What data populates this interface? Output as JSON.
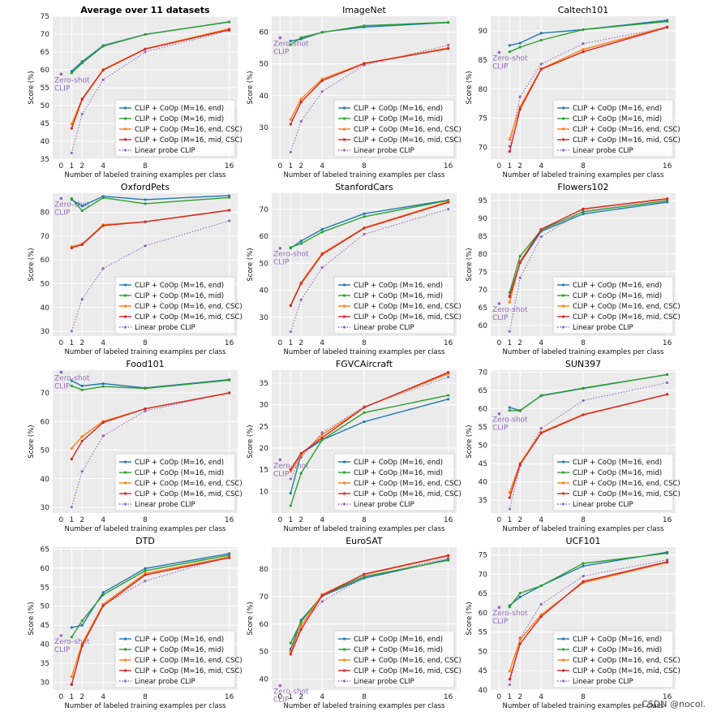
{
  "colors": {
    "end": "#1f77b4",
    "mid": "#2ca02c",
    "end_csc": "#ff7f0e",
    "mid_csc": "#d62728",
    "linear": "#9467bd",
    "background": "#ebebeb",
    "grid": "#ffffff"
  },
  "common": {
    "xlabel": "Number of labeled training examples per class",
    "ylabel": "Score (%)",
    "zero_shot_label_line1": "Zero-shot",
    "zero_shot_label_line2": "CLIP",
    "x": [
      1,
      2,
      4,
      8,
      16
    ],
    "xticks": [
      0,
      1,
      2,
      4,
      8,
      16
    ],
    "legend": [
      "CLIP + CoOp (M=16, end)",
      "CLIP + CoOp (M=16, mid)",
      "CLIP + CoOp (M=16, end, CSC)",
      "CLIP + CoOp (M=16, mid, CSC)",
      "Linear probe CLIP"
    ]
  },
  "watermark": "CSDN @nocol.",
  "chart_data": [
    {
      "type": "line",
      "title": "Average over 11 datasets",
      "bold": true,
      "ylim": [
        35,
        75
      ],
      "yticks": [
        35,
        40,
        45,
        50,
        55,
        60,
        65,
        70,
        75
      ],
      "zero_shot": 58.8,
      "series": [
        {
          "key": "end",
          "values": [
            59.6,
            62.3,
            66.8,
            69.9,
            73.4
          ]
        },
        {
          "key": "mid",
          "values": [
            59.1,
            61.9,
            66.6,
            69.9,
            73.4
          ]
        },
        {
          "key": "end_csc",
          "values": [
            44.8,
            51.9,
            60.1,
            65.9,
            71.5
          ]
        },
        {
          "key": "mid_csc",
          "values": [
            43.6,
            51.7,
            59.9,
            65.8,
            71.2
          ]
        },
        {
          "key": "linear",
          "values": [
            36.7,
            47.6,
            57.2,
            65.0,
            71.0
          ]
        }
      ]
    },
    {
      "type": "line",
      "title": "ImageNet",
      "ylim": [
        20,
        65
      ],
      "yticks": [
        30,
        40,
        50,
        60
      ],
      "zero_shot": 58.2,
      "series": [
        {
          "key": "end",
          "values": [
            57.2,
            57.8,
            60.0,
            61.6,
            63.0
          ]
        },
        {
          "key": "mid",
          "values": [
            56.0,
            58.3,
            59.9,
            62.0,
            63.1
          ]
        },
        {
          "key": "end_csc",
          "values": [
            32.5,
            39.0,
            45.2,
            50.2,
            55.0
          ]
        },
        {
          "key": "mid_csc",
          "values": [
            31.0,
            38.0,
            44.7,
            50.1,
            54.8
          ]
        },
        {
          "key": "linear",
          "values": [
            22.2,
            31.9,
            41.3,
            49.6,
            55.9
          ]
        }
      ]
    },
    {
      "type": "line",
      "title": "Caltech101",
      "ylim": [
        68,
        92.5
      ],
      "yticks": [
        70,
        75,
        80,
        85,
        90
      ],
      "zero_shot": 86.3,
      "series": [
        {
          "key": "end",
          "values": [
            87.5,
            87.9,
            89.6,
            90.2,
            91.8
          ]
        },
        {
          "key": "mid",
          "values": [
            86.4,
            87.2,
            88.4,
            90.2,
            91.6
          ]
        },
        {
          "key": "end_csc",
          "values": [
            71.4,
            77.0,
            83.5,
            86.8,
            90.7
          ]
        },
        {
          "key": "mid_csc",
          "values": [
            69.3,
            76.6,
            83.4,
            86.4,
            90.6
          ]
        },
        {
          "key": "linear",
          "values": [
            70.2,
            78.7,
            84.3,
            87.8,
            90.6
          ]
        }
      ]
    },
    {
      "type": "line",
      "title": "OxfordPets",
      "ylim": [
        28,
        88
      ],
      "yticks": [
        30,
        40,
        50,
        60,
        70,
        80
      ],
      "zero_shot": 85.8,
      "series": [
        {
          "key": "end",
          "values": [
            85.3,
            82.6,
            86.7,
            85.3,
            87.0
          ]
        },
        {
          "key": "mid",
          "values": [
            85.8,
            80.6,
            86.1,
            83.6,
            86.2
          ]
        },
        {
          "key": "end_csc",
          "values": [
            65.6,
            66.7,
            74.8,
            76.0,
            80.9
          ]
        },
        {
          "key": "mid_csc",
          "values": [
            65.0,
            66.4,
            74.4,
            76.0,
            80.8
          ]
        },
        {
          "key": "linear",
          "values": [
            30.1,
            43.5,
            56.4,
            65.9,
            76.4
          ]
        }
      ]
    },
    {
      "type": "line",
      "title": "StanfordCars",
      "ylim": [
        23,
        76
      ],
      "yticks": [
        30,
        40,
        50,
        60,
        70
      ],
      "zero_shot": 55.6,
      "series": [
        {
          "key": "end",
          "values": [
            55.6,
            58.3,
            62.6,
            68.4,
            73.4
          ]
        },
        {
          "key": "mid",
          "values": [
            55.9,
            57.3,
            61.6,
            67.3,
            73.3
          ]
        },
        {
          "key": "end_csc",
          "values": [
            34.5,
            42.9,
            53.7,
            63.2,
            72.9
          ]
        },
        {
          "key": "mid_csc",
          "values": [
            34.3,
            42.5,
            53.3,
            63.0,
            72.6
          ]
        },
        {
          "key": "linear",
          "values": [
            24.6,
            36.5,
            48.4,
            60.8,
            70.1
          ]
        }
      ]
    },
    {
      "type": "line",
      "title": "Flowers102",
      "ylim": [
        57,
        97
      ],
      "yticks": [
        60,
        65,
        70,
        75,
        80,
        85,
        90,
        95
      ],
      "zero_shot": 66.1,
      "series": [
        {
          "key": "end",
          "values": [
            68.2,
            77.5,
            86.3,
            91.2,
            94.5
          ]
        },
        {
          "key": "mid",
          "values": [
            69.2,
            79.4,
            86.7,
            91.8,
            94.9
          ]
        },
        {
          "key": "end_csc",
          "values": [
            66.5,
            77.9,
            86.9,
            92.6,
            95.5
          ]
        },
        {
          "key": "mid_csc",
          "values": [
            68.0,
            77.6,
            86.9,
            92.6,
            95.4
          ]
        },
        {
          "key": "linear",
          "values": [
            58.3,
            73.3,
            84.8,
            92.0,
            94.9
          ]
        }
      ]
    },
    {
      "type": "line",
      "title": "Food101",
      "ylim": [
        28,
        78
      ],
      "yticks": [
        30,
        40,
        50,
        60,
        70
      ],
      "zero_shot": 77.3,
      "series": [
        {
          "key": "end",
          "values": [
            74.3,
            72.5,
            73.3,
            71.8,
            74.7
          ]
        },
        {
          "key": "mid",
          "values": [
            72.5,
            71.1,
            72.3,
            71.6,
            74.5
          ]
        },
        {
          "key": "end_csc",
          "values": [
            50.6,
            54.8,
            60.1,
            64.5,
            70.1
          ]
        },
        {
          "key": "mid_csc",
          "values": [
            46.9,
            53.2,
            59.7,
            64.5,
            70.0
          ]
        },
        {
          "key": "linear",
          "values": [
            30.1,
            42.6,
            55.0,
            63.7,
            70.2
          ]
        }
      ]
    },
    {
      "type": "line",
      "title": "FGVCAircraft",
      "ylim": [
        5,
        38
      ],
      "yticks": [
        10,
        15,
        20,
        25,
        30,
        35
      ],
      "zero_shot": 17.3,
      "series": [
        {
          "key": "end",
          "values": [
            9.6,
            18.7,
            21.9,
            26.1,
            31.3
          ]
        },
        {
          "key": "mid",
          "values": [
            6.7,
            14.2,
            21.9,
            28.2,
            32.2
          ]
        },
        {
          "key": "end_csc",
          "values": [
            14.6,
            18.4,
            23.1,
            29.4,
            37.2
          ]
        },
        {
          "key": "mid_csc",
          "values": [
            15.1,
            18.8,
            22.4,
            29.4,
            37.5
          ]
        },
        {
          "key": "linear",
          "values": [
            12.9,
            17.9,
            23.6,
            29.6,
            36.4
          ]
        }
      ]
    },
    {
      "type": "line",
      "title": "SUN397",
      "ylim": [
        31.5,
        70.5
      ],
      "yticks": [
        35,
        40,
        45,
        50,
        55,
        60,
        65,
        70
      ],
      "zero_shot": 58.6,
      "series": [
        {
          "key": "end",
          "values": [
            60.3,
            59.5,
            63.5,
            65.5,
            69.3
          ]
        },
        {
          "key": "mid",
          "values": [
            59.5,
            59.4,
            63.6,
            65.6,
            69.3
          ]
        },
        {
          "key": "end_csc",
          "values": [
            37.1,
            45.1,
            53.6,
            58.4,
            63.9
          ]
        },
        {
          "key": "mid_csc",
          "values": [
            35.7,
            44.8,
            53.3,
            58.3,
            63.9
          ]
        },
        {
          "key": "linear",
          "values": [
            32.6,
            44.4,
            54.6,
            62.2,
            67.1
          ]
        }
      ]
    },
    {
      "type": "line",
      "title": "DTD",
      "ylim": [
        28,
        65.5
      ],
      "yticks": [
        30,
        35,
        40,
        45,
        50,
        55,
        60,
        65
      ],
      "zero_shot": 42.3,
      "series": [
        {
          "key": "end",
          "values": [
            44.4,
            45.0,
            53.6,
            59.9,
            63.8
          ]
        },
        {
          "key": "mid",
          "values": [
            41.9,
            46.2,
            53.0,
            59.3,
            63.4
          ]
        },
        {
          "key": "end_csc",
          "values": [
            31.5,
            40.2,
            50.5,
            58.6,
            62.9
          ]
        },
        {
          "key": "mid_csc",
          "values": [
            29.4,
            39.7,
            50.1,
            58.2,
            62.7
          ]
        },
        {
          "key": "linear",
          "values": [
            29.6,
            39.5,
            50.3,
            56.6,
            63.1
          ]
        }
      ]
    },
    {
      "type": "line",
      "title": "EuroSAT",
      "ylim": [
        36,
        88
      ],
      "yticks": [
        40,
        50,
        60,
        70,
        80
      ],
      "zero_shot": 37.6,
      "series": [
        {
          "key": "end",
          "values": [
            50.6,
            61.5,
            70.2,
            76.7,
            83.5
          ]
        },
        {
          "key": "mid",
          "values": [
            53.1,
            60.9,
            70.5,
            77.3,
            83.2
          ]
        },
        {
          "key": "end_csc",
          "values": [
            49.9,
            59.4,
            70.8,
            78.0,
            84.8
          ]
        },
        {
          "key": "mid_csc",
          "values": [
            49.0,
            58.1,
            70.4,
            78.2,
            85.0
          ]
        },
        {
          "key": "linear",
          "values": [
            51.0,
            59.8,
            68.2,
            77.0,
            84.0
          ]
        }
      ]
    },
    {
      "type": "line",
      "title": "UCF101",
      "ylim": [
        40,
        77
      ],
      "yticks": [
        40,
        45,
        50,
        55,
        60,
        65,
        70,
        75
      ],
      "zero_shot": 61.4,
      "series": [
        {
          "key": "end",
          "values": [
            61.9,
            64.1,
            67.0,
            72.1,
            75.7
          ]
        },
        {
          "key": "mid",
          "values": [
            61.5,
            65.1,
            67.0,
            72.8,
            75.4
          ]
        },
        {
          "key": "end_csc",
          "values": [
            44.9,
            53.1,
            59.5,
            67.8,
            73.0
          ]
        },
        {
          "key": "mid_csc",
          "values": [
            42.8,
            52.0,
            59.0,
            68.1,
            73.2
          ]
        },
        {
          "key": "linear",
          "values": [
            41.4,
            53.5,
            62.2,
            69.5,
            73.7
          ]
        }
      ]
    }
  ]
}
